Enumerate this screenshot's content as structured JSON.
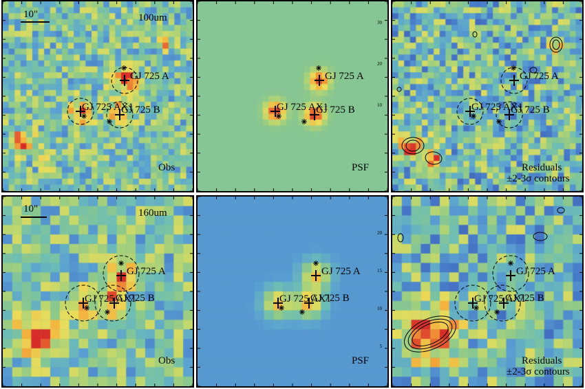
{
  "panels": [
    {
      "row": 0,
      "col": 0,
      "kind": "obs",
      "band_label": "100um",
      "scale_label": "10\"",
      "corner_label": "Obs",
      "colormap": "obs"
    },
    {
      "row": 0,
      "col": 1,
      "kind": "psf",
      "band_label": "",
      "scale_label": "",
      "corner_label": "PSF",
      "colormap": "psf100"
    },
    {
      "row": 0,
      "col": 2,
      "kind": "res",
      "band_label": "",
      "scale_label": "",
      "corner_label": "Residuals",
      "corner_label2": "±2-3σ contours",
      "colormap": "res"
    },
    {
      "row": 1,
      "col": 0,
      "kind": "obs",
      "band_label": "160um",
      "scale_label": "10\"",
      "corner_label": "Obs",
      "colormap": "obs"
    },
    {
      "row": 1,
      "col": 1,
      "kind": "psf",
      "band_label": "",
      "scale_label": "",
      "corner_label": "PSF",
      "colormap": "psf160"
    },
    {
      "row": 1,
      "col": 2,
      "kind": "res",
      "band_label": "",
      "scale_label": "",
      "corner_label": "Residuals",
      "corner_label2": "±2-3σ contours",
      "colormap": "res"
    }
  ],
  "sources": {
    "a": "GJ 725 A",
    "b": "GJ 725 B",
    "ax1": "GJ 725 AX1"
  },
  "psf_axis_ticks_top": [
    "30",
    "20",
    "10"
  ],
  "psf_axis_ticks_bottom": [
    "20",
    "15",
    "10",
    "5"
  ],
  "colors": {
    "obs_bg": "#6ab7a8",
    "psf100_bg": "#6ab7a8",
    "psf160_bg": "#5b9fc4",
    "hot": "#d7302b",
    "warm": "#f4a23a",
    "cold": "#4a1e78"
  }
}
